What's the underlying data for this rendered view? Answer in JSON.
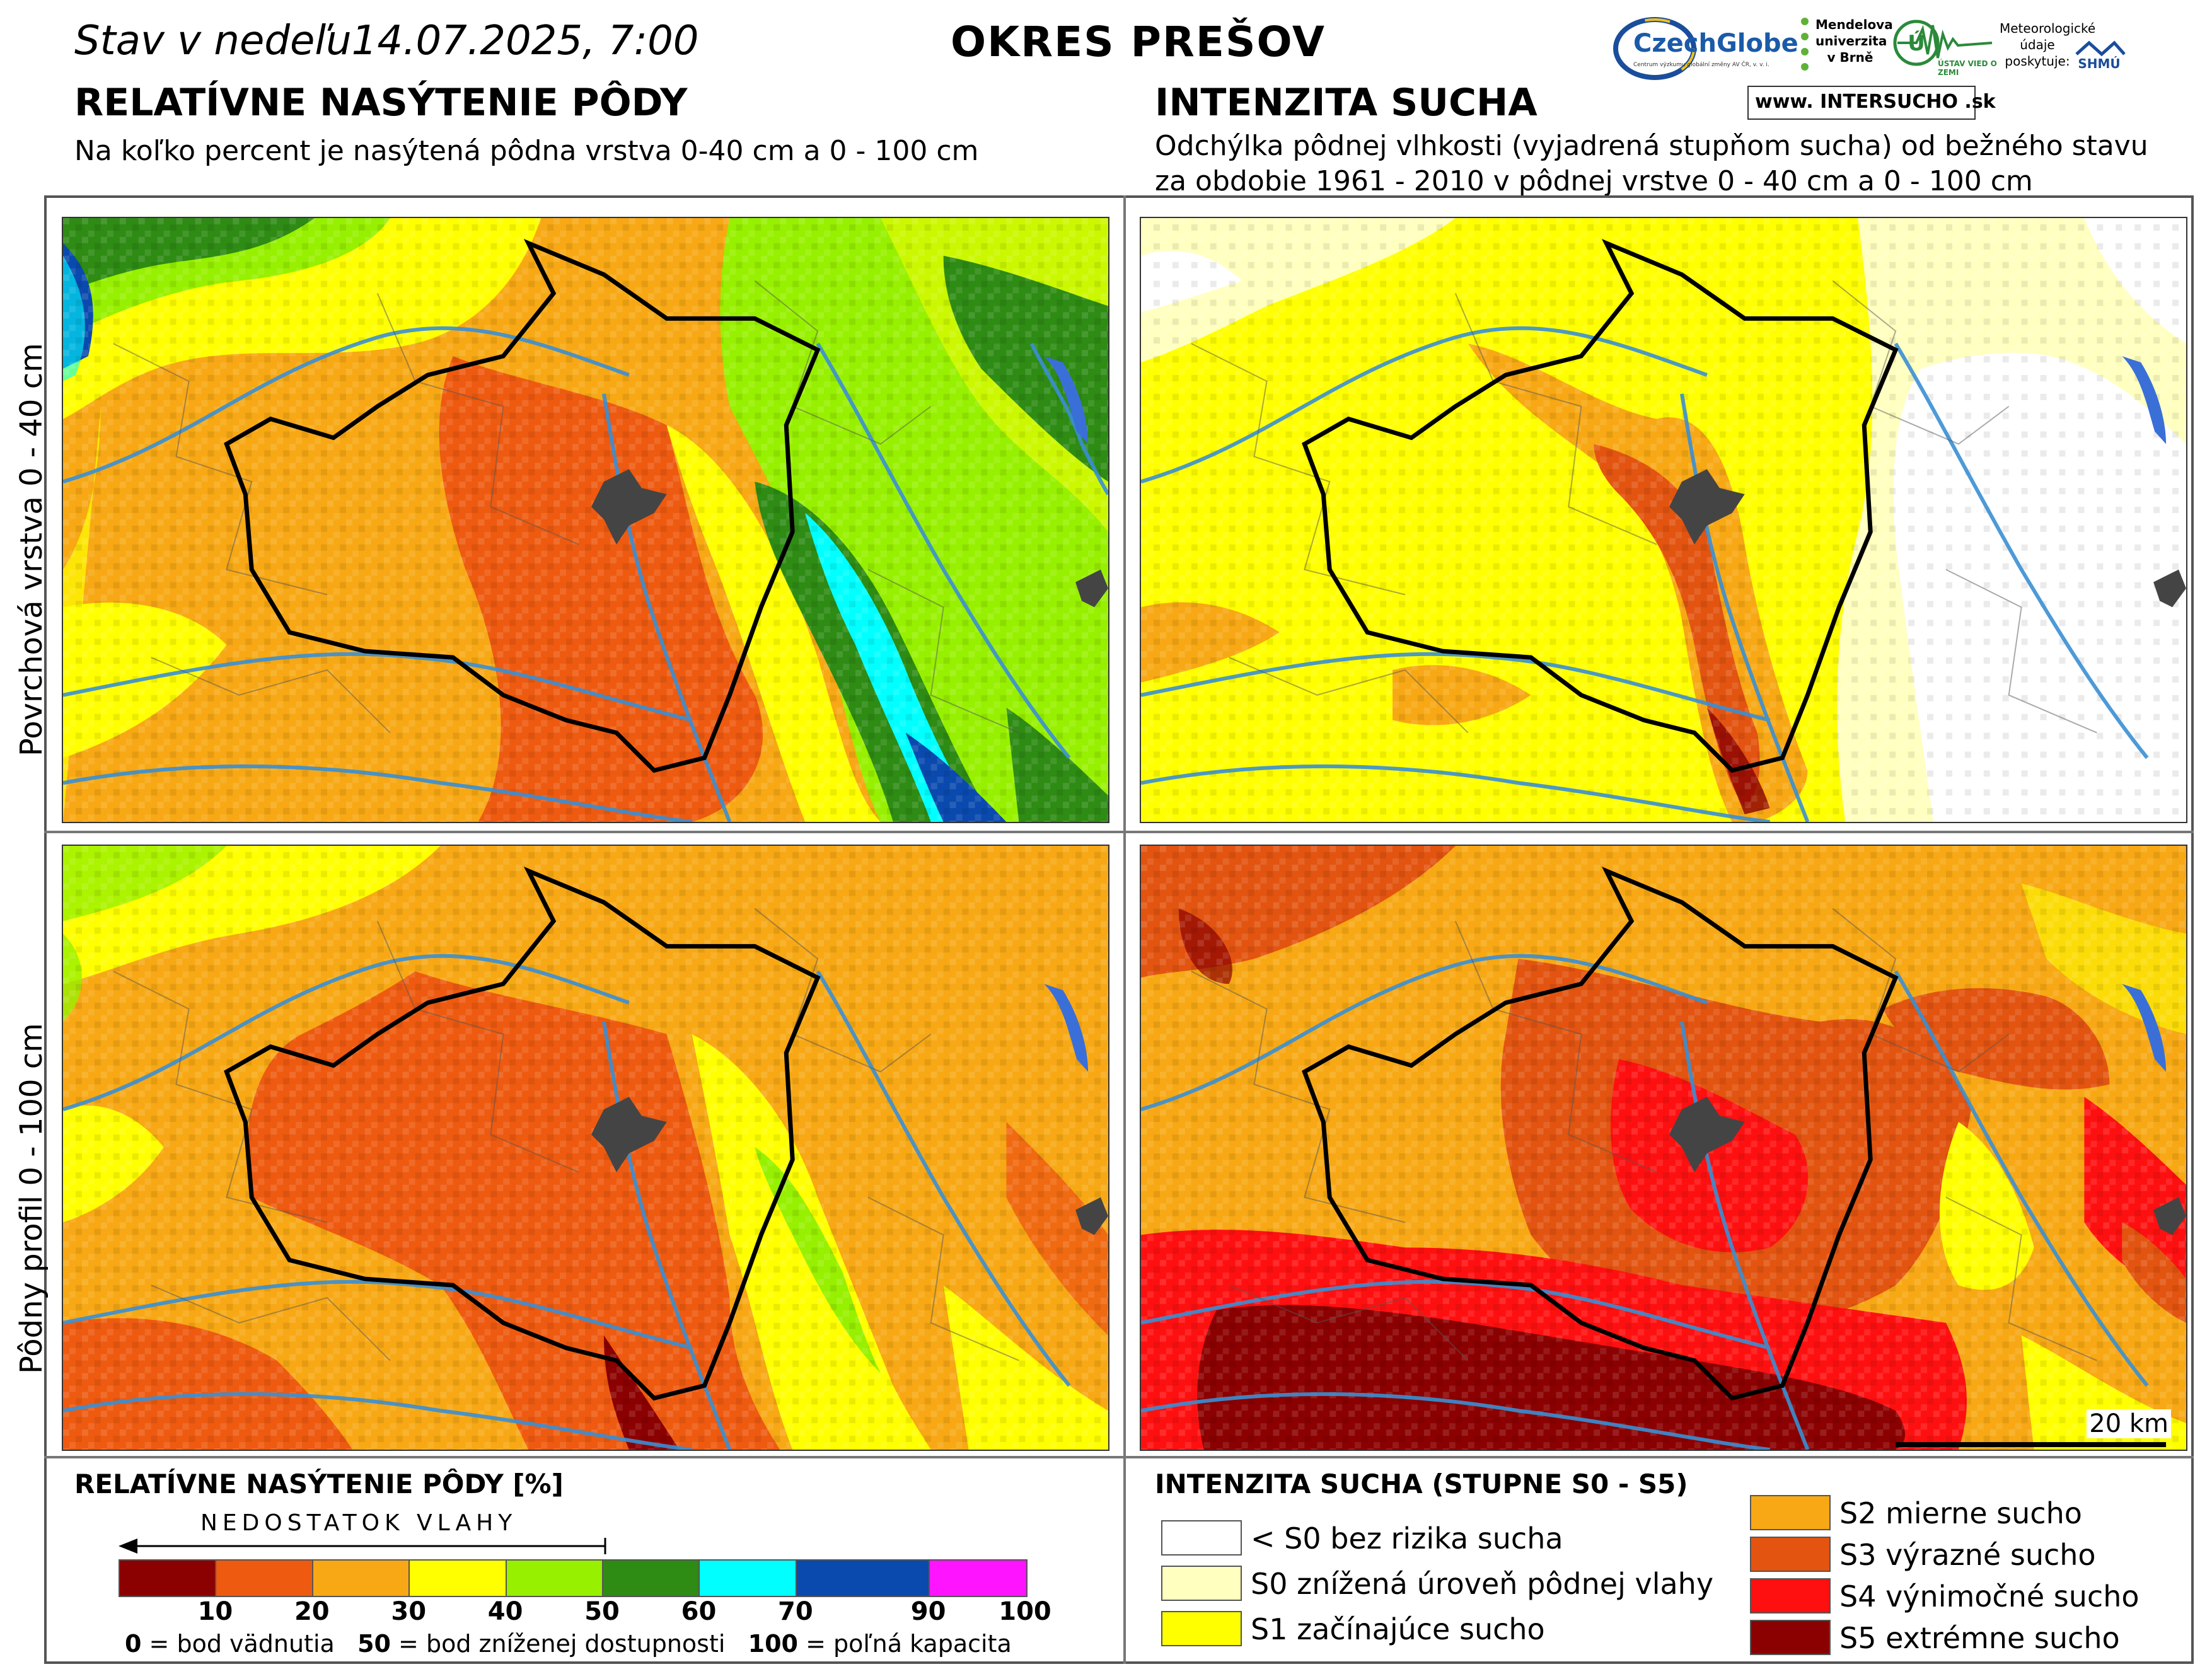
{
  "header": {
    "date_text": "Stav v nedeľu14.07.2025, 7:00",
    "district": "OKRES PREŠOV",
    "intersucho_logo": "www. INTERSUCHO .sk",
    "czechglobe_logo": "CzechGlobe",
    "czechglobe_sub": "Centrum výzkumu globální změny AV ČR, v. v. i.",
    "mendel_logo": "Mendelova univerzita v Brně",
    "uvz_logo": "ÚSTAV VIED O ZEMI",
    "shmu_label": "Meteorologické údaje poskytuje:",
    "shmu_logo": "SHMÚ"
  },
  "left_section": {
    "title": "RELATÍVNE NASÝTENIE PÔDY",
    "subtitle": "Na koľko percent je nasýtená pôdna vrstva 0-40 cm a 0 - 100 cm"
  },
  "right_section": {
    "title": "INTENZITA SUCHA",
    "subtitle_line1": "Odchýlka pôdnej vlhkosti (vyjadrená stupňom sucha) od bežného stavu",
    "subtitle_line2": "za obdobie 1961 - 2010 v pôdnej vrstve 0 - 40 cm a 0 - 100 cm"
  },
  "row_labels": {
    "top": "Povrchová vrstva 0 - 40 cm",
    "bottom": "Pôdny profil 0 - 100 cm"
  },
  "scale_bar": {
    "label": "20 km"
  },
  "legend_left": {
    "title": "RELATÍVNE NASÝTENIE PÔDY [%]",
    "arrow_label": "NEDOSTATOK VLAHY",
    "colors": [
      "#8b0000",
      "#ee5a10",
      "#f7a814",
      "#ffff00",
      "#97f000",
      "#2e8b14",
      "#00ffff",
      "#0a4aae",
      "#ff14ff"
    ],
    "ticks": [
      "10",
      "20",
      "30",
      "40",
      "50",
      "60",
      "70",
      "90",
      "100"
    ],
    "footnote_bold_0": "0",
    "footnote_0": " = bod vädnutia",
    "footnote_bold_50": "50",
    "footnote_50": " = bod zníženej dostupnosti",
    "footnote_bold_100": "100",
    "footnote_100": " = poľná kapacita"
  },
  "legend_right": {
    "title": "INTENZITA SUCHA (STUPNE S0 - S5)",
    "items": [
      {
        "label": "< S0 bez rizika sucha",
        "color": "#ffffff"
      },
      {
        "label": "S0 znížená úroveň pôdnej vlahy",
        "color": "#ffffc0"
      },
      {
        "label": "S1 začínajúce sucho",
        "color": "#ffff00"
      },
      {
        "label": "S2 mierne sucho",
        "color": "#f7a814"
      },
      {
        "label": "S3 výrazné sucho",
        "color": "#e25410"
      },
      {
        "label": "S4 výnimočné sucho",
        "color": "#ff1010"
      },
      {
        "label": "S5 extrémne sucho",
        "color": "#8b0000"
      }
    ]
  }
}
